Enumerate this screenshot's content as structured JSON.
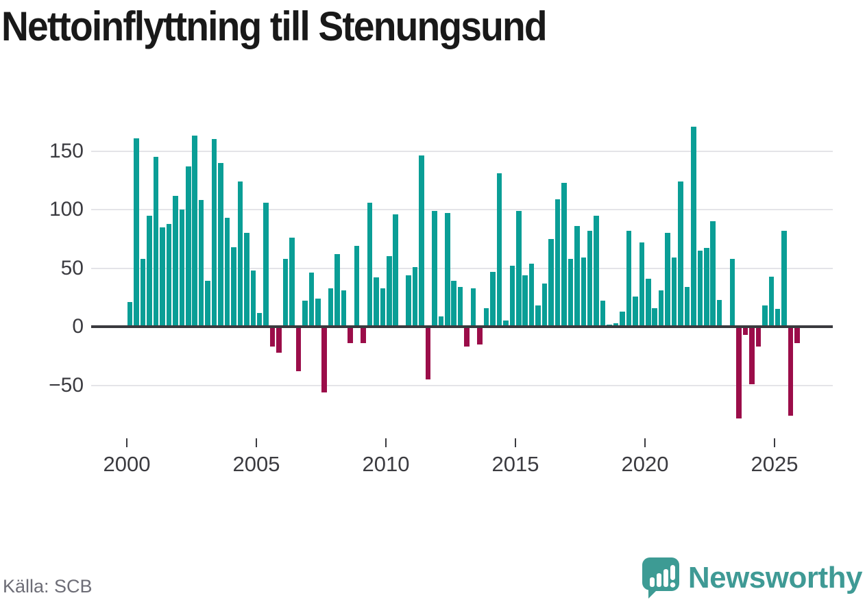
{
  "title": "Nettoinflyttning till Stenungsund",
  "source": "Källa: SCB",
  "branding": {
    "name": "Newsworthy",
    "icon": "speech-bubble-bar-chart-icon"
  },
  "colors": {
    "positive_bar": "#0a9e96",
    "negative_bar": "#9b0d49",
    "zero_line": "#3a3a3e",
    "gridline": "#e4e4e8",
    "title_text": "#191919",
    "axis_text": "#3b3b40",
    "source_text": "#6d6d76",
    "brand_teal": "#3f9a95"
  },
  "chart_data": {
    "type": "bar",
    "title": "Nettoinflyttning till Stenungsund",
    "xlabel": "",
    "ylabel": "",
    "frequency": "quarterly",
    "grid": "horizontal",
    "legend": "none",
    "ylim": [
      -90,
      178
    ],
    "y_ticks": [
      {
        "value": 150,
        "label": "150"
      },
      {
        "value": 100,
        "label": "100"
      },
      {
        "value": 50,
        "label": "50"
      },
      {
        "value": 0,
        "label": "0"
      },
      {
        "value": -50,
        "label": "−50"
      }
    ],
    "x_ticks": [
      {
        "value": 2000,
        "label": "2000"
      },
      {
        "value": 2005,
        "label": "2005"
      },
      {
        "value": 2010,
        "label": "2010"
      },
      {
        "value": 2015,
        "label": "2015"
      },
      {
        "value": 2020,
        "label": "2020"
      },
      {
        "value": 2025,
        "label": "2025"
      }
    ],
    "series_by_year": [
      {
        "year": 2000,
        "q": [
          21,
          161,
          58,
          95
        ]
      },
      {
        "year": 2001,
        "q": [
          145,
          85,
          88,
          112
        ]
      },
      {
        "year": 2002,
        "q": [
          100,
          137,
          163,
          108
        ]
      },
      {
        "year": 2003,
        "q": [
          39,
          160,
          140,
          93
        ]
      },
      {
        "year": 2004,
        "q": [
          68,
          124,
          80,
          48
        ]
      },
      {
        "year": 2005,
        "q": [
          12,
          106,
          -16,
          -21
        ]
      },
      {
        "year": 2006,
        "q": [
          58,
          76,
          -37,
          22
        ]
      },
      {
        "year": 2007,
        "q": [
          46,
          24,
          -55,
          33
        ]
      },
      {
        "year": 2008,
        "q": [
          62,
          31,
          -13,
          69
        ]
      },
      {
        "year": 2009,
        "q": [
          -13,
          106,
          42,
          33
        ]
      },
      {
        "year": 2010,
        "q": [
          60,
          96,
          0,
          44
        ]
      },
      {
        "year": 2011,
        "q": [
          51,
          146,
          -44,
          99
        ]
      },
      {
        "year": 2012,
        "q": [
          9,
          97,
          39,
          34
        ]
      },
      {
        "year": 2013,
        "q": [
          -16,
          33,
          -14,
          16
        ]
      },
      {
        "year": 2014,
        "q": [
          47,
          131,
          5,
          52
        ]
      },
      {
        "year": 2015,
        "q": [
          99,
          44,
          54,
          18
        ]
      },
      {
        "year": 2016,
        "q": [
          37,
          75,
          109,
          123
        ]
      },
      {
        "year": 2017,
        "q": [
          58,
          86,
          59,
          82
        ]
      },
      {
        "year": 2018,
        "q": [
          95,
          22,
          2,
          3
        ]
      },
      {
        "year": 2019,
        "q": [
          13,
          82,
          26,
          72
        ]
      },
      {
        "year": 2020,
        "q": [
          41,
          16,
          31,
          80
        ]
      },
      {
        "year": 2021,
        "q": [
          59,
          124,
          34,
          171
        ]
      },
      {
        "year": 2022,
        "q": [
          65,
          67,
          90,
          23
        ]
      },
      {
        "year": 2023,
        "q": [
          0,
          58,
          -77,
          -6
        ]
      },
      {
        "year": 2024,
        "q": [
          -48,
          -16,
          18,
          43
        ]
      },
      {
        "year": 2025,
        "q": [
          15,
          82,
          -75,
          -13
        ]
      }
    ]
  }
}
